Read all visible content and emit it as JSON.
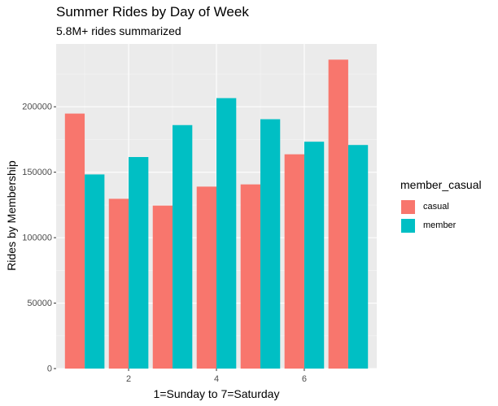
{
  "chart_data": {
    "type": "bar",
    "title": "Summer Rides by Day of Week",
    "subtitle": "5.8M+ rides summarized",
    "xlabel": "1=Sunday to 7=Saturday",
    "ylabel": "Rides by Membership",
    "categories": [
      1,
      2,
      3,
      4,
      5,
      6,
      7
    ],
    "x_ticks": [
      "2",
      "4",
      "6"
    ],
    "y_ticks": [
      "0",
      "50000",
      "100000",
      "150000",
      "200000"
    ],
    "ylim": [
      0,
      248000
    ],
    "xlim": [
      0.35,
      7.65
    ],
    "legend_title": "member_casual",
    "legend_position": "right",
    "grid": true,
    "series": [
      {
        "name": "casual",
        "color": "#F8766D",
        "values": [
          194800,
          129700,
          124500,
          139000,
          140700,
          163700,
          236000
        ]
      },
      {
        "name": "member",
        "color": "#00BFC4",
        "values": [
          148300,
          161600,
          186000,
          206600,
          190500,
          173300,
          170800
        ]
      }
    ]
  }
}
